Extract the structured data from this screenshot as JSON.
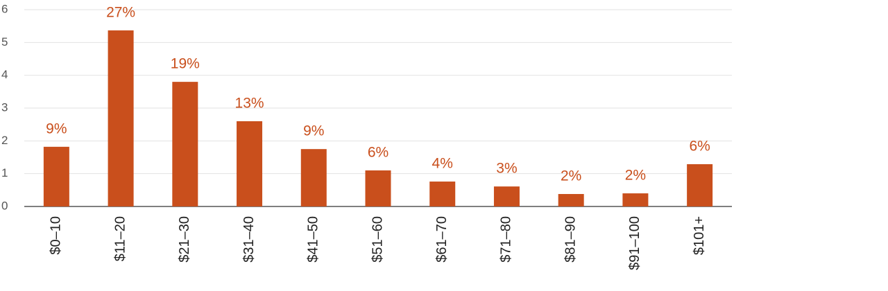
{
  "chart_data": {
    "type": "bar",
    "categories": [
      "$0–10",
      "$11–20",
      "$21–30",
      "$31–40",
      "$41–50",
      "$51–60",
      "$61–70",
      "$71–80",
      "$81–90",
      "$91–100",
      "$101+"
    ],
    "values": [
      1.82,
      5.37,
      3.8,
      2.6,
      1.75,
      1.1,
      0.76,
      0.61,
      0.38,
      0.4,
      1.29
    ],
    "value_labels": [
      "9%",
      "27%",
      "19%",
      "13%",
      "9%",
      "6%",
      "4%",
      "3%",
      "2%",
      "2%",
      "6%"
    ],
    "color": "#c94f1c",
    "ylim": [
      0,
      6
    ],
    "yticks": [
      0,
      1,
      2,
      3,
      4,
      5,
      6
    ],
    "grid": true
  }
}
